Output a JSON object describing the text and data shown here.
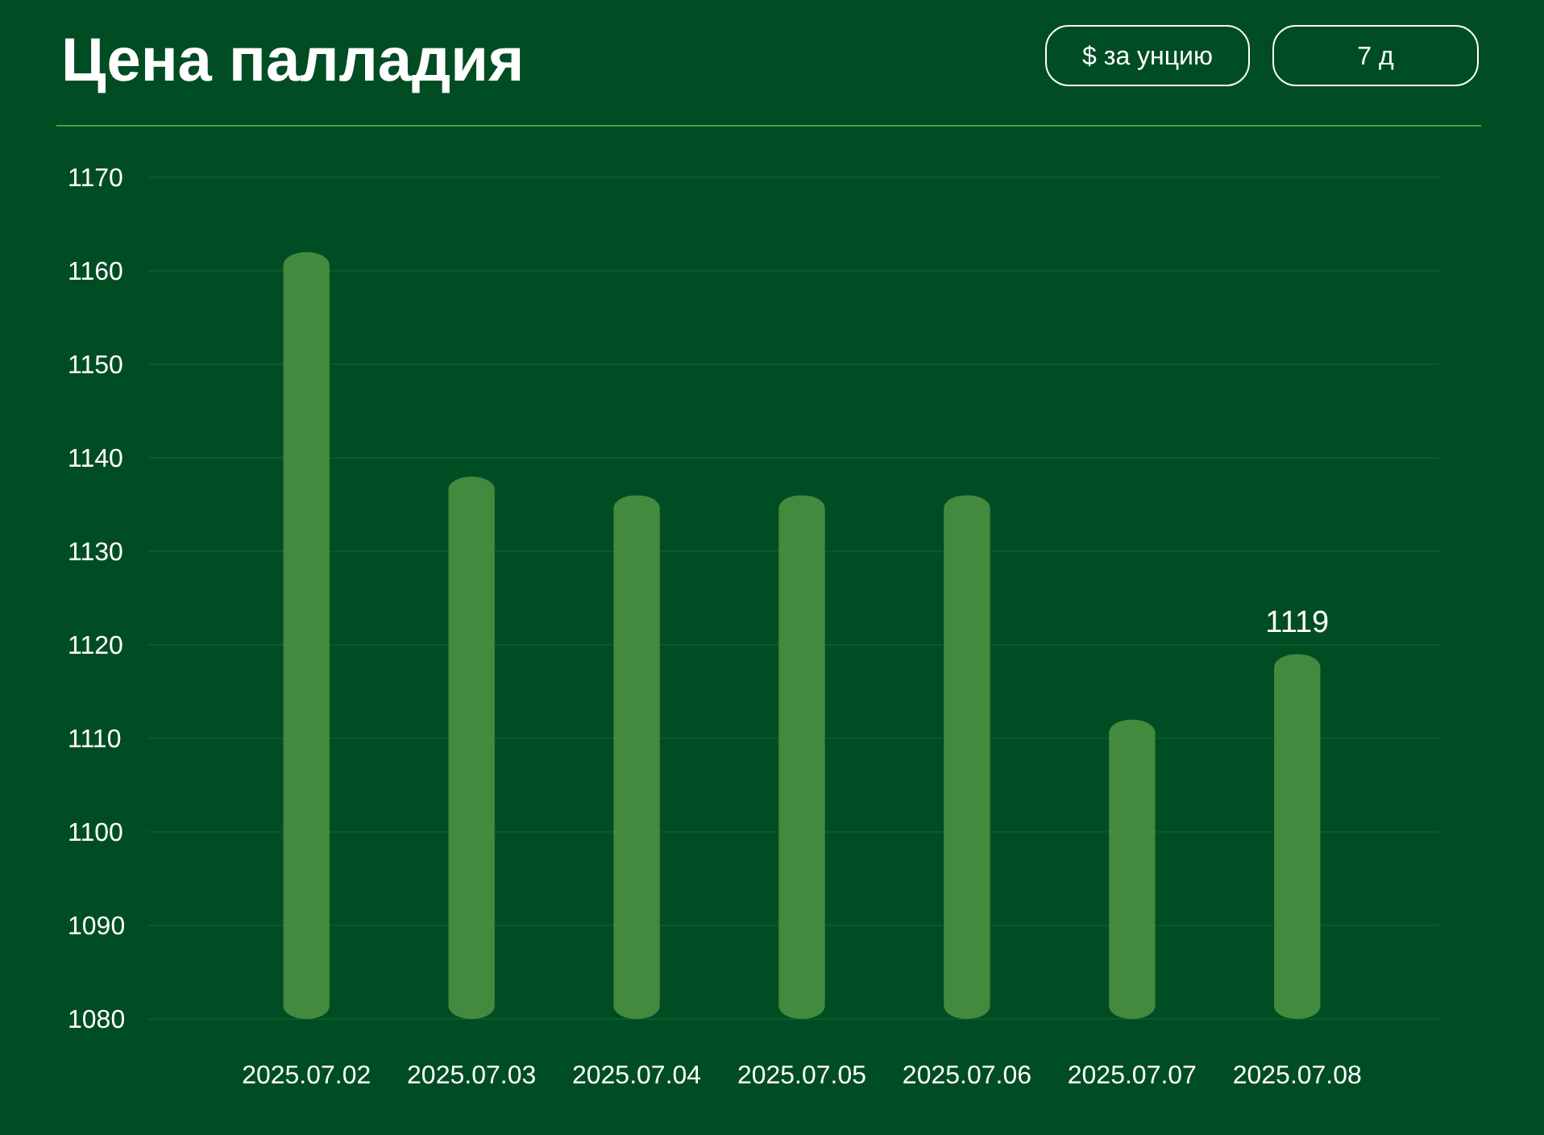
{
  "chart_data": {
    "type": "bar",
    "title": "Цена палладия",
    "annotations": [
      "$ за унцию",
      "7 д"
    ],
    "categories": [
      "2025.07.02",
      "2025.07.03",
      "2025.07.04",
      "2025.07.05",
      "2025.07.06",
      "2025.07.07",
      "2025.07.08"
    ],
    "values": [
      1162,
      1138,
      1136,
      1136,
      1136,
      1112,
      1119
    ],
    "value_labels": [
      null,
      null,
      null,
      null,
      null,
      null,
      "1119"
    ],
    "color": "#438a3f",
    "ylim": [
      1080,
      1170
    ],
    "yticks": [
      1080,
      1090,
      1100,
      1110,
      1120,
      1130,
      1140,
      1150,
      1160,
      1170
    ],
    "grid": "y"
  }
}
